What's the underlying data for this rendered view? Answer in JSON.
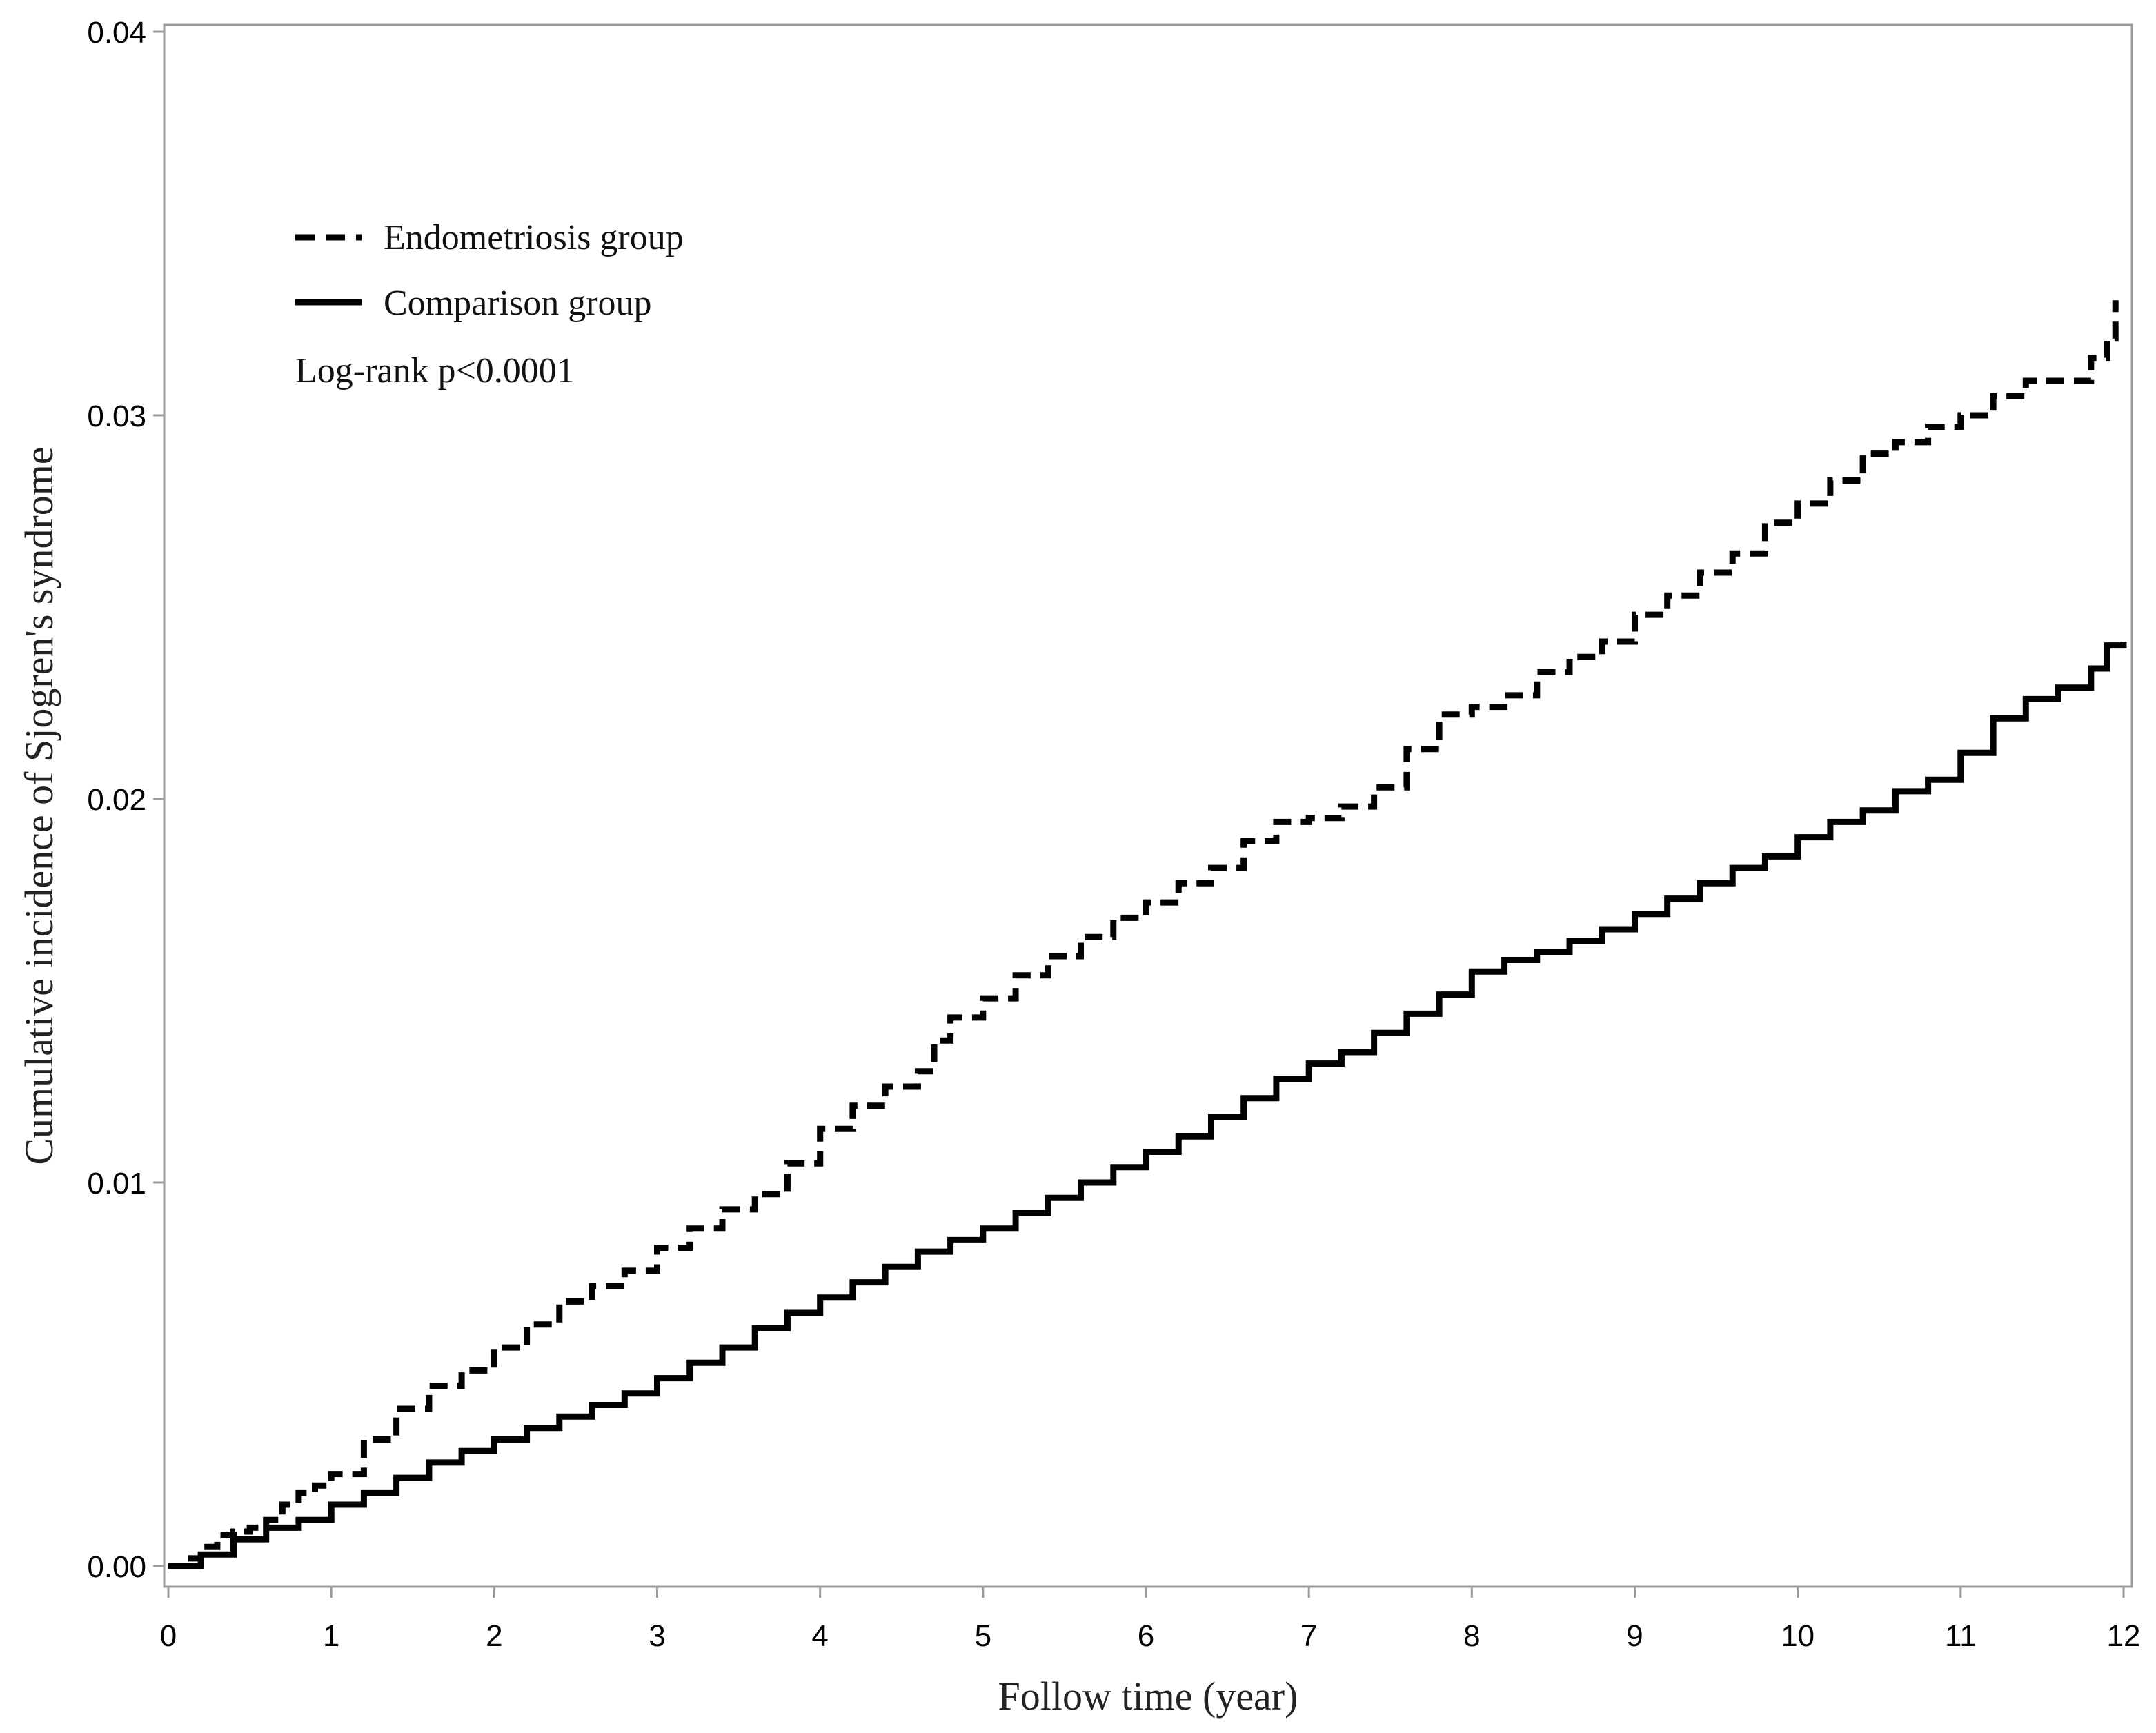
{
  "chart_data": {
    "type": "line",
    "xlabel": "Follow time (year)",
    "ylabel": "Cumulative incidence of Sjogren's syndrome",
    "xlim": [
      0,
      12
    ],
    "ylim": [
      0,
      0.04
    ],
    "xticks": [
      "0",
      "1",
      "2",
      "3",
      "4",
      "5",
      "6",
      "7",
      "8",
      "9",
      "10",
      "11",
      "12"
    ],
    "yticks": [
      "0.00",
      "0.01",
      "0.02",
      "0.03",
      "0.04"
    ],
    "grid": false,
    "legend_position": "top-left",
    "annotation": "Log-rank p<0.0001",
    "series": [
      {
        "name": "Endometriosis group",
        "style": "dashed",
        "color": "#000000",
        "x": [
          0,
          0.1,
          0.2,
          0.3,
          0.4,
          0.5,
          0.6,
          0.7,
          0.8,
          0.9,
          1.0,
          1.2,
          1.4,
          1.6,
          1.8,
          2.0,
          2.2,
          2.4,
          2.6,
          2.8,
          3.0,
          3.2,
          3.4,
          3.6,
          3.8,
          4.0,
          4.2,
          4.4,
          4.6,
          4.7,
          4.8,
          5.0,
          5.2,
          5.4,
          5.6,
          5.8,
          6.0,
          6.2,
          6.4,
          6.6,
          6.8,
          7.0,
          7.2,
          7.4,
          7.6,
          7.8,
          8.0,
          8.2,
          8.4,
          8.6,
          8.8,
          9.0,
          9.2,
          9.4,
          9.6,
          9.8,
          10.0,
          10.2,
          10.4,
          10.6,
          10.8,
          11.0,
          11.2,
          11.4,
          11.6,
          11.8,
          11.9,
          11.95
        ],
        "values": [
          0,
          0.0002,
          0.0005,
          0.0008,
          0.0009,
          0.001,
          0.0012,
          0.0016,
          0.0019,
          0.0021,
          0.0024,
          0.0033,
          0.0041,
          0.0047,
          0.0051,
          0.0057,
          0.0063,
          0.0069,
          0.0073,
          0.0077,
          0.0083,
          0.0088,
          0.0093,
          0.0097,
          0.0105,
          0.0114,
          0.012,
          0.0125,
          0.0129,
          0.0137,
          0.0143,
          0.0148,
          0.0154,
          0.0159,
          0.0164,
          0.0169,
          0.0173,
          0.0178,
          0.0182,
          0.0189,
          0.0194,
          0.0195,
          0.0198,
          0.0203,
          0.0213,
          0.0222,
          0.0224,
          0.0227,
          0.0233,
          0.0237,
          0.0241,
          0.0248,
          0.0253,
          0.0259,
          0.0264,
          0.0272,
          0.0277,
          0.0283,
          0.029,
          0.0293,
          0.0297,
          0.03,
          0.0305,
          0.0309,
          0.0309,
          0.0315,
          0.032,
          0.033
        ]
      },
      {
        "name": "Comparison group",
        "style": "solid",
        "color": "#000000",
        "x": [
          0,
          0.2,
          0.4,
          0.6,
          0.8,
          1.0,
          1.2,
          1.4,
          1.6,
          1.8,
          2.0,
          2.2,
          2.4,
          2.6,
          2.8,
          3.0,
          3.2,
          3.4,
          3.6,
          3.8,
          4.0,
          4.2,
          4.4,
          4.6,
          4.8,
          5.0,
          5.2,
          5.4,
          5.6,
          5.8,
          6.0,
          6.2,
          6.4,
          6.6,
          6.8,
          7.0,
          7.2,
          7.4,
          7.6,
          7.8,
          8.0,
          8.2,
          8.4,
          8.6,
          8.8,
          9.0,
          9.2,
          9.4,
          9.6,
          9.8,
          10.0,
          10.2,
          10.4,
          10.6,
          10.8,
          11.0,
          11.2,
          11.4,
          11.6,
          11.8,
          11.9,
          12.0
        ],
        "values": [
          0,
          0.0003,
          0.0007,
          0.001,
          0.0012,
          0.0016,
          0.0019,
          0.0023,
          0.0027,
          0.003,
          0.0033,
          0.0036,
          0.0039,
          0.0042,
          0.0045,
          0.0049,
          0.0053,
          0.0057,
          0.0062,
          0.0066,
          0.007,
          0.0074,
          0.0078,
          0.0082,
          0.0085,
          0.0088,
          0.0092,
          0.0096,
          0.01,
          0.0104,
          0.0108,
          0.0112,
          0.0117,
          0.0122,
          0.0127,
          0.0131,
          0.0134,
          0.0139,
          0.0144,
          0.0149,
          0.0155,
          0.0158,
          0.016,
          0.0163,
          0.0166,
          0.017,
          0.0174,
          0.0178,
          0.0182,
          0.0185,
          0.019,
          0.0194,
          0.0197,
          0.0202,
          0.0205,
          0.0212,
          0.0221,
          0.0226,
          0.0229,
          0.0234,
          0.024,
          0.0241
        ]
      }
    ]
  }
}
